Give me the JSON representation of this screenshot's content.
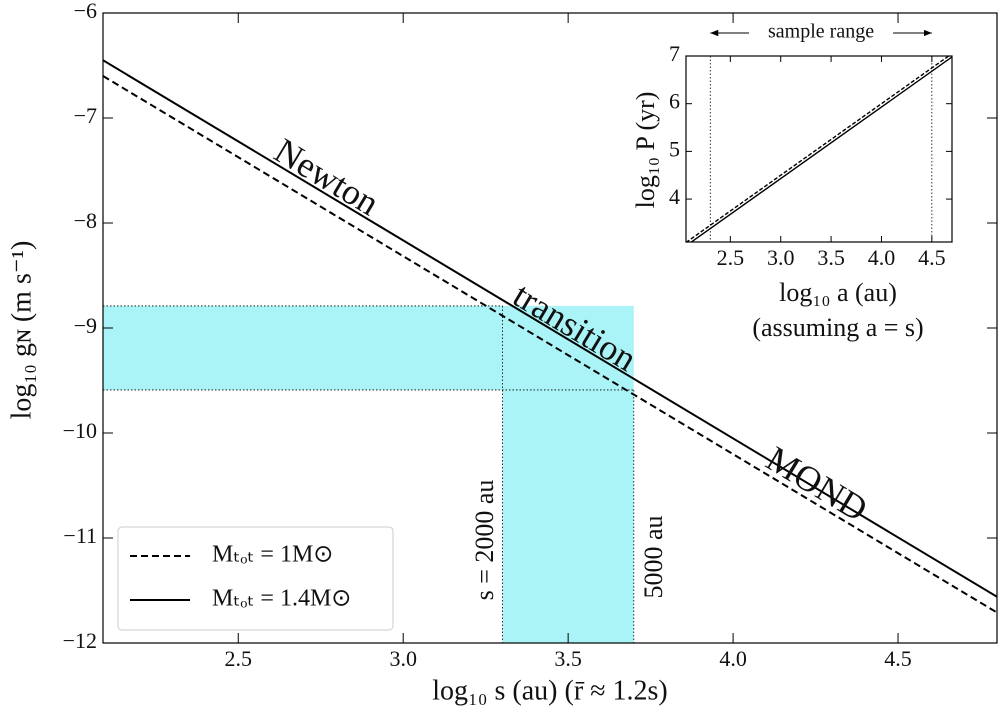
{
  "chart_data": [
    {
      "type": "line",
      "xlabel": "log₁₀ s (au)  (r̄ ≈ 1.2s)",
      "ylabel": "log₁₀ gɴ (m s⁻¹)",
      "x": [
        2.09,
        4.8
      ],
      "series": [
        {
          "name": "Mₜₒₜ = 1M⊙",
          "color": "#000000",
          "dash": true,
          "values": [
            -6.6,
            -11.71
          ]
        },
        {
          "name": "Mₜₒₜ = 1.4M⊙",
          "color": "#000000",
          "dash": false,
          "values": [
            -6.45,
            -11.56
          ]
        }
      ],
      "xlim": [
        2.09,
        4.8
      ],
      "ylim": [
        -12,
        -6
      ],
      "xticks": [
        2.5,
        {
          "value": 3,
          "label": "3.0"
        },
        3.5,
        {
          "value": 4,
          "label": "4.0"
        },
        4.5
      ],
      "yticks": [
        {
          "value": -6,
          "label": "−6"
        },
        {
          "value": -7,
          "label": "−7"
        },
        {
          "value": -8,
          "label": "−8"
        },
        {
          "value": -9,
          "label": "−9"
        },
        {
          "value": -10,
          "label": "−10"
        },
        {
          "value": -11,
          "label": "−11"
        },
        {
          "value": -12,
          "label": "−12"
        }
      ],
      "band_x": [
        3.301,
        3.699
      ],
      "band_y": [
        -9.59,
        -8.79
      ],
      "band_color": "#aaf4f7",
      "annotations": [
        "Newton",
        "transition",
        "MOND",
        "s = 2000 au",
        "5000 au"
      ],
      "legend": "lower left"
    },
    {
      "type": "line",
      "xlabel": "log₁₀ a (au)",
      "subtitle": "(assuming a = s)",
      "ylabel": "log₁₀ P (yr)",
      "annotation": "sample range",
      "x": [
        2.06,
        4.7
      ],
      "series": [
        {
          "color": "#000000",
          "dash": true,
          "values": [
            3.09,
            7.05
          ]
        },
        {
          "color": "#000000",
          "dash": false,
          "values": [
            3.02,
            6.98
          ]
        }
      ],
      "xlim": [
        2.06,
        4.7
      ],
      "ylim": [
        3.1,
        7
      ],
      "xticks": [
        2.5,
        {
          "value": 3,
          "label": "3.0"
        },
        3.5,
        {
          "value": 4,
          "label": "4.0"
        },
        4.5
      ],
      "yticks": [
        4,
        5,
        6,
        7
      ],
      "vlines": [
        2.301,
        4.5
      ]
    }
  ]
}
